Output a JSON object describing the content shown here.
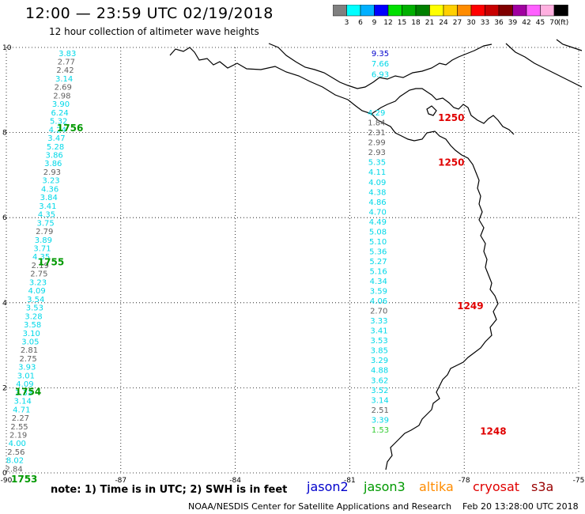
{
  "title": "12:00 — 23:59 UTC 02/19/2018",
  "subtitle": "12 hour collection of altimeter wave heights",
  "colors": {
    "jason2": "#0000cc",
    "jason3": "#009900",
    "altika": "#ff8c00",
    "cryosat": "#e00000",
    "s3a": "#990000",
    "land": "#000000",
    "grid": "#000000",
    "values_cyan": "#00d8e8",
    "values_gray": "#606060"
  },
  "color_scale": {
    "unit": "(ft)",
    "labels": [
      "3",
      "6",
      "9",
      "12",
      "15",
      "18",
      "21",
      "24",
      "27",
      "30",
      "33",
      "36",
      "39",
      "42",
      "45",
      "70"
    ],
    "swatches": [
      "#808080",
      "#00ffff",
      "#00b0ff",
      "#0000ff",
      "#00e000",
      "#00b000",
      "#008000",
      "#ffff00",
      "#ffd000",
      "#ff8c00",
      "#ff0000",
      "#c80000",
      "#800000",
      "#a000a0",
      "#ff60ff",
      "#ffb0e0",
      "#000000"
    ]
  },
  "axes": {
    "x_ticks": [
      "-90",
      "-87",
      "-84",
      "-81",
      "-78",
      "-75"
    ],
    "y_ticks": [
      "0",
      "2",
      "4",
      "6",
      "8",
      "10"
    ],
    "x_range": [
      -90,
      -75
    ],
    "y_range": [
      0,
      10
    ]
  },
  "track_west": {
    "times": [
      {
        "label": "1756",
        "lon": -88.8,
        "lat": 8.25
      },
      {
        "label": "1755",
        "lon": -89.3,
        "lat": 5.1
      },
      {
        "label": "1754",
        "lon": -89.9,
        "lat": 2.05
      },
      {
        "label": "1753",
        "lon": -90.0,
        "lat": 0.0
      }
    ],
    "points": [
      {
        "v": "3.83",
        "c": "c"
      },
      {
        "v": "2.77",
        "c": "g"
      },
      {
        "v": "2.42",
        "c": "g"
      },
      {
        "v": "3.14",
        "c": "c"
      },
      {
        "v": "2.69",
        "c": "g"
      },
      {
        "v": "2.98",
        "c": "g"
      },
      {
        "v": "3.90",
        "c": "c"
      },
      {
        "v": "6.24",
        "c": "c"
      },
      {
        "v": "5.32",
        "c": "c"
      },
      {
        "v": "4.24",
        "c": "c"
      },
      {
        "v": "3.47",
        "c": "c"
      },
      {
        "v": "5.28",
        "c": "c"
      },
      {
        "v": "3.86",
        "c": "c"
      },
      {
        "v": "3.86",
        "c": "c"
      },
      {
        "v": "2.93",
        "c": "g"
      },
      {
        "v": "3.23",
        "c": "c"
      },
      {
        "v": "4.36",
        "c": "c"
      },
      {
        "v": "3.84",
        "c": "c"
      },
      {
        "v": "3.41",
        "c": "c"
      },
      {
        "v": "4.35",
        "c": "c"
      },
      {
        "v": "3.75",
        "c": "c"
      },
      {
        "v": "2.79",
        "c": "g"
      },
      {
        "v": "3.89",
        "c": "c"
      },
      {
        "v": "3.71",
        "c": "c"
      },
      {
        "v": "4.35",
        "c": "c"
      },
      {
        "v": "2.19",
        "c": "g"
      },
      {
        "v": "2.75",
        "c": "g"
      },
      {
        "v": "3.23",
        "c": "c"
      },
      {
        "v": "4.09",
        "c": "c"
      },
      {
        "v": "3.54",
        "c": "c"
      },
      {
        "v": "3.53",
        "c": "c"
      },
      {
        "v": "3.28",
        "c": "c"
      },
      {
        "v": "3.58",
        "c": "c"
      },
      {
        "v": "3.10",
        "c": "c"
      },
      {
        "v": "3.05",
        "c": "c"
      },
      {
        "v": "2.81",
        "c": "g"
      },
      {
        "v": "2.75",
        "c": "g"
      },
      {
        "v": "3.93",
        "c": "c"
      },
      {
        "v": "3.01",
        "c": "c"
      },
      {
        "v": "4.09",
        "c": "c"
      },
      {
        "v": "3.33",
        "c": "c"
      },
      {
        "v": "3.14",
        "c": "c"
      },
      {
        "v": "4.71",
        "c": "c"
      },
      {
        "v": "2.27",
        "c": "g"
      },
      {
        "v": "2.55",
        "c": "g"
      },
      {
        "v": "2.19",
        "c": "g"
      },
      {
        "v": "4.00",
        "c": "c"
      },
      {
        "v": "2.56",
        "c": "g"
      },
      {
        "v": "8.02",
        "c": "c"
      },
      {
        "v": "2.84",
        "c": "g"
      }
    ]
  },
  "track_east": {
    "times": [
      {
        "label": "1250",
        "lon": -79.1,
        "lat": 8.35
      },
      {
        "label": "1250",
        "lon": -79.1,
        "lat": 7.3
      },
      {
        "label": "1249",
        "lon": -78.6,
        "lat": 3.92
      },
      {
        "label": "1248",
        "lon": -78.0,
        "lat": 0.98
      }
    ],
    "top": [
      {
        "v": "9.35",
        "c": "b"
      },
      {
        "v": "7.66",
        "c": "c"
      },
      {
        "v": "6.93",
        "c": "c"
      }
    ],
    "points": [
      {
        "v": "4.29",
        "c": "c"
      },
      {
        "v": "1.84",
        "c": "g"
      },
      {
        "v": "2.31",
        "c": "g"
      },
      {
        "v": "2.99",
        "c": "g"
      },
      {
        "v": "2.93",
        "c": "g"
      },
      {
        "v": "5.35",
        "c": "c"
      },
      {
        "v": "4.11",
        "c": "c"
      },
      {
        "v": "4.09",
        "c": "c"
      },
      {
        "v": "4.38",
        "c": "c"
      },
      {
        "v": "4.86",
        "c": "c"
      },
      {
        "v": "4.70",
        "c": "c"
      },
      {
        "v": "4.49",
        "c": "c"
      },
      {
        "v": "5.08",
        "c": "c"
      },
      {
        "v": "5.10",
        "c": "c"
      },
      {
        "v": "5.36",
        "c": "c"
      },
      {
        "v": "5.27",
        "c": "c"
      },
      {
        "v": "5.16",
        "c": "c"
      },
      {
        "v": "4.34",
        "c": "c"
      },
      {
        "v": "3.59",
        "c": "c"
      },
      {
        "v": "4.06",
        "c": "c"
      },
      {
        "v": "2.70",
        "c": "g"
      },
      {
        "v": "3.33",
        "c": "c"
      },
      {
        "v": "3.41",
        "c": "c"
      },
      {
        "v": "3.53",
        "c": "c"
      },
      {
        "v": "3.85",
        "c": "c"
      },
      {
        "v": "3.29",
        "c": "c"
      },
      {
        "v": "4.88",
        "c": "c"
      },
      {
        "v": "3.62",
        "c": "c"
      },
      {
        "v": "3.52",
        "c": "c"
      },
      {
        "v": "3.14",
        "c": "c"
      },
      {
        "v": "2.51",
        "c": "g"
      },
      {
        "v": "3.39",
        "c": "c"
      },
      {
        "v": "1.53",
        "c": "l"
      }
    ]
  },
  "note": "note:  1) Time is in UTC;  2) SWH is in feet",
  "legend": {
    "jason2": "jason2",
    "jason3": "jason3",
    "altika": "altika",
    "cryosat": "cryosat",
    "s3a": "s3a"
  },
  "footer": "NOAA/NESDIS Center for Satellite Applications and Research",
  "timestamp": "Feb 20 13:28:00 UTC 2018"
}
